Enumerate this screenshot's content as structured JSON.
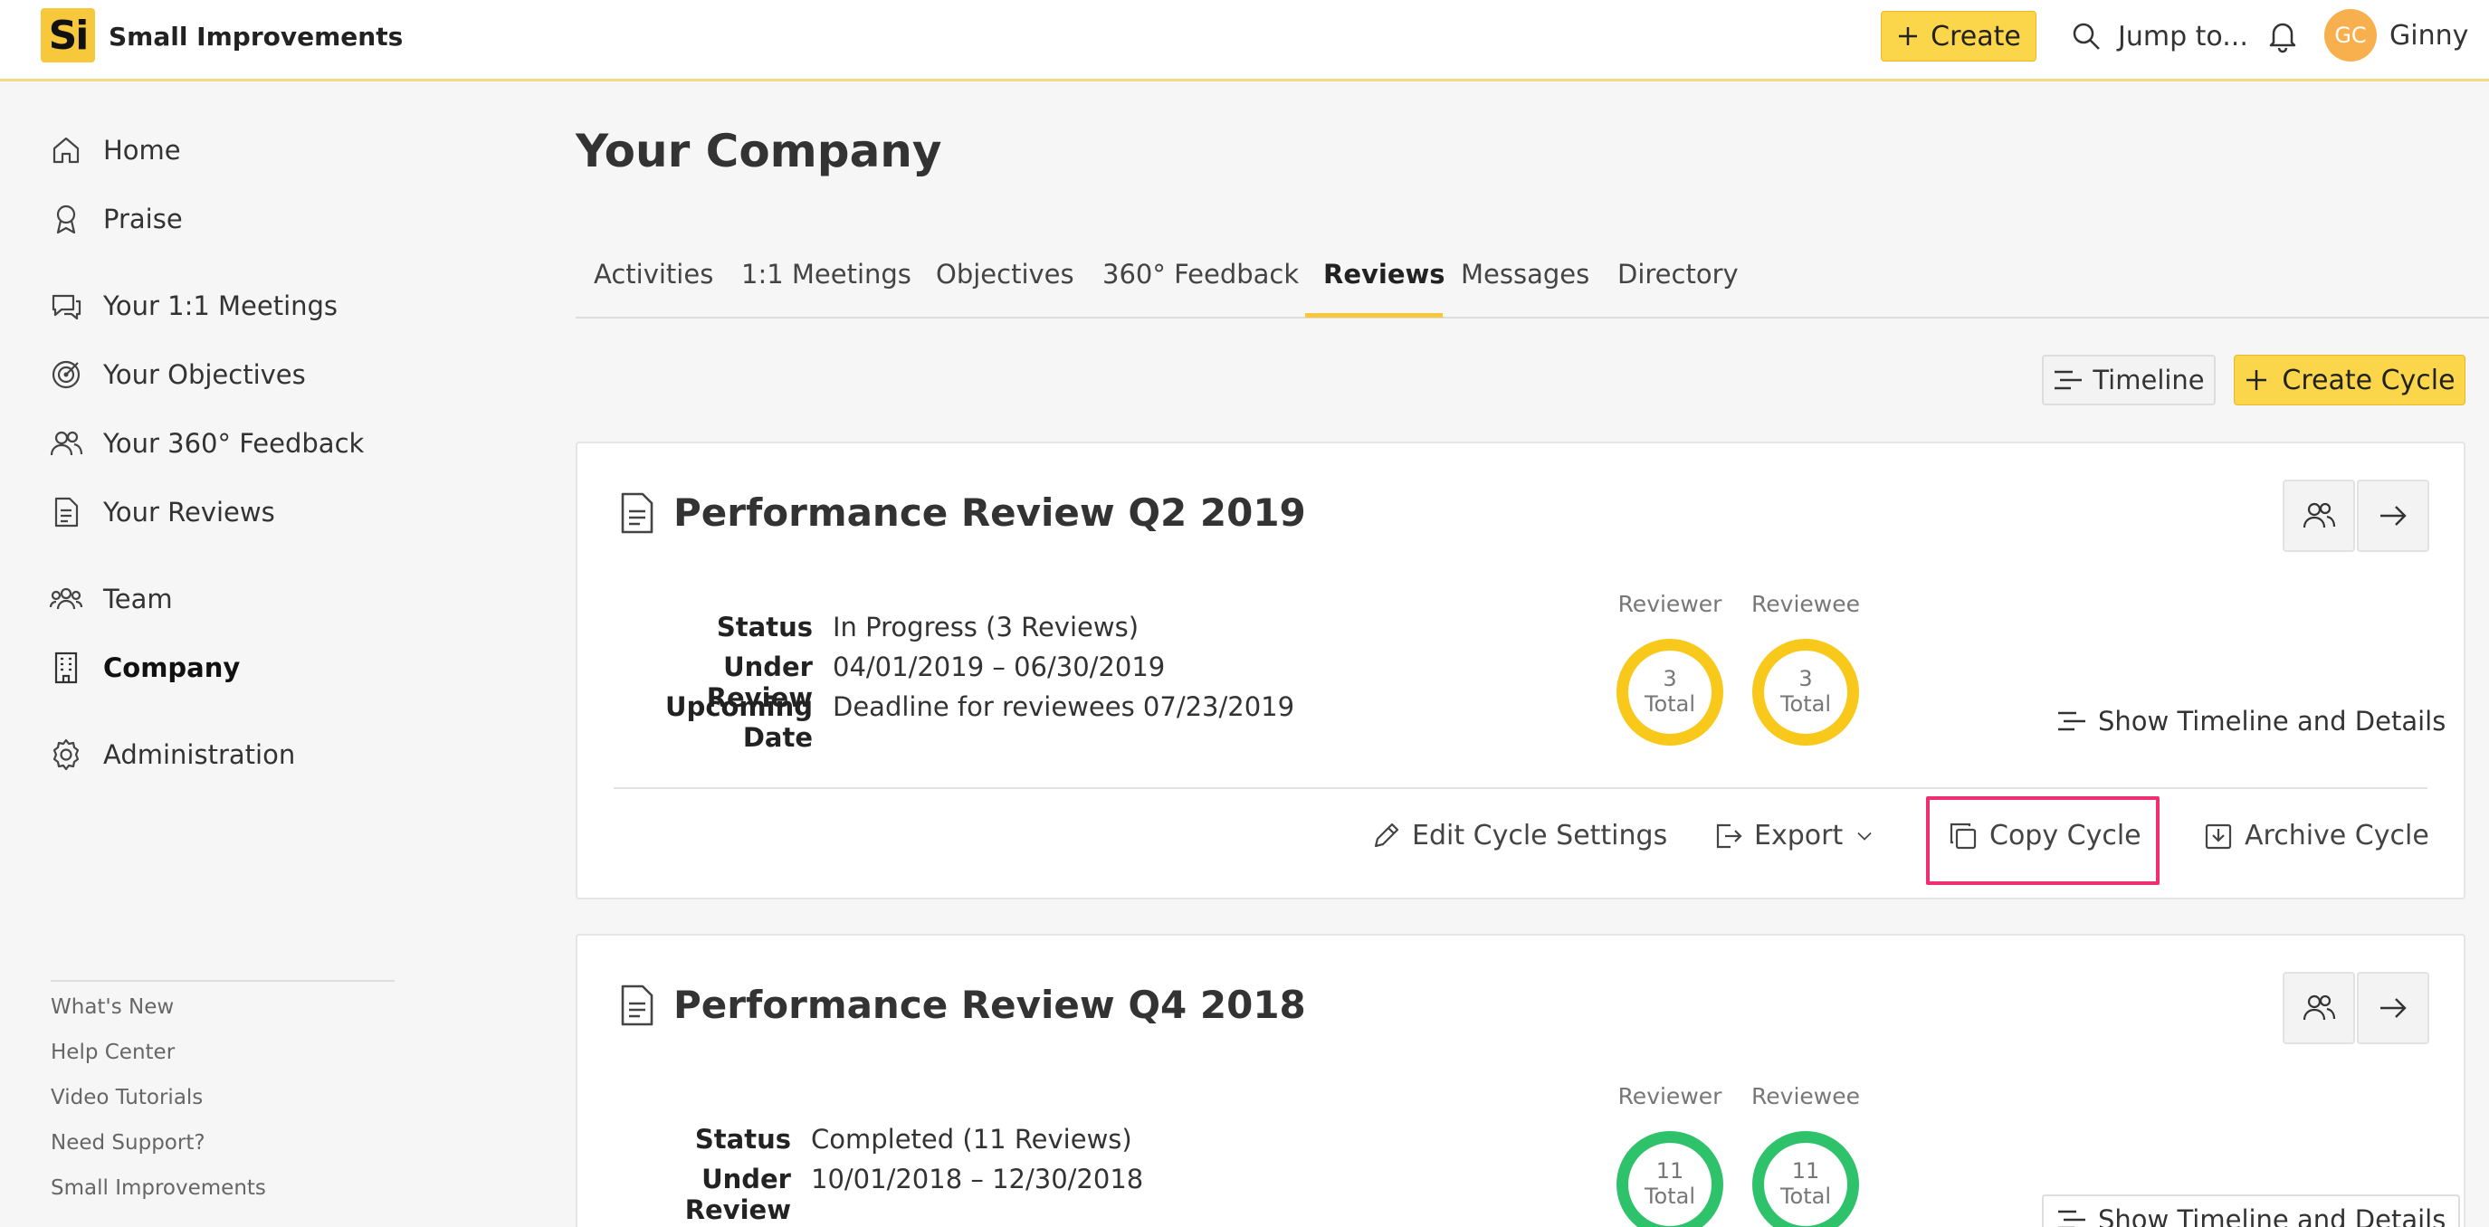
{
  "header": {
    "logo_text": "Si",
    "brand": "Small Improvements",
    "create_label": "Create",
    "jump_label": "Jump to...",
    "avatar_initials": "GC",
    "user_name": "Ginny",
    "accent_color": "#fbd64b"
  },
  "sidebar": {
    "items": [
      {
        "label": "Home",
        "icon": "home-icon"
      },
      {
        "label": "Praise",
        "icon": "award-icon"
      },
      {
        "label": "Your 1:1 Meetings",
        "icon": "chat-icon"
      },
      {
        "label": "Your Objectives",
        "icon": "target-icon"
      },
      {
        "label": "Your 360° Feedback",
        "icon": "users-icon"
      },
      {
        "label": "Your Reviews",
        "icon": "document-icon"
      },
      {
        "label": "Team",
        "icon": "team-icon"
      },
      {
        "label": "Company",
        "icon": "building-icon",
        "active": true
      },
      {
        "label": "Administration",
        "icon": "gear-icon"
      }
    ],
    "footer_links": [
      "What's New",
      "Help Center",
      "Video Tutorials",
      "Need Support?",
      "Small Improvements"
    ]
  },
  "main": {
    "title": "Your Company",
    "tabs": [
      "Activities",
      "1:1 Meetings",
      "Objectives",
      "360° Feedback",
      "Reviews",
      "Messages",
      "Directory"
    ],
    "active_tab": "Reviews",
    "timeline_label": "Timeline",
    "create_cycle_label": "Create Cycle"
  },
  "cycles": [
    {
      "title": "Performance Review Q2 2019",
      "status_label": "Status",
      "status": "In Progress (3 Reviews)",
      "under_review_label": "Under Review",
      "under_review": "04/01/2019 – 06/30/2019",
      "upcoming_label": "Upcoming Date",
      "upcoming": "Deadline for reviewees 07/23/2019",
      "reviewer_label": "Reviewer",
      "reviewee_label": "Reviewee",
      "reviewer_count": "3",
      "reviewee_count": "3",
      "total_label": "Total",
      "ring_color": "#f8c81b",
      "show_details": "Show Timeline and Details",
      "actions": {
        "edit": "Edit Cycle Settings",
        "export": "Export",
        "copy": "Copy Cycle",
        "archive": "Archive Cycle"
      }
    },
    {
      "title": "Performance Review Q4 2018",
      "status_label": "Status",
      "status": "Completed (11 Reviews)",
      "under_review_label": "Under Review",
      "under_review": "10/01/2018 – 12/30/2018",
      "reviewer_label": "Reviewer",
      "reviewee_label": "Reviewee",
      "reviewer_count": "11",
      "reviewee_count": "11",
      "total_label": "Total",
      "ring_color": "#2ec26b",
      "show_details": "Show Timeline and Details"
    }
  ]
}
